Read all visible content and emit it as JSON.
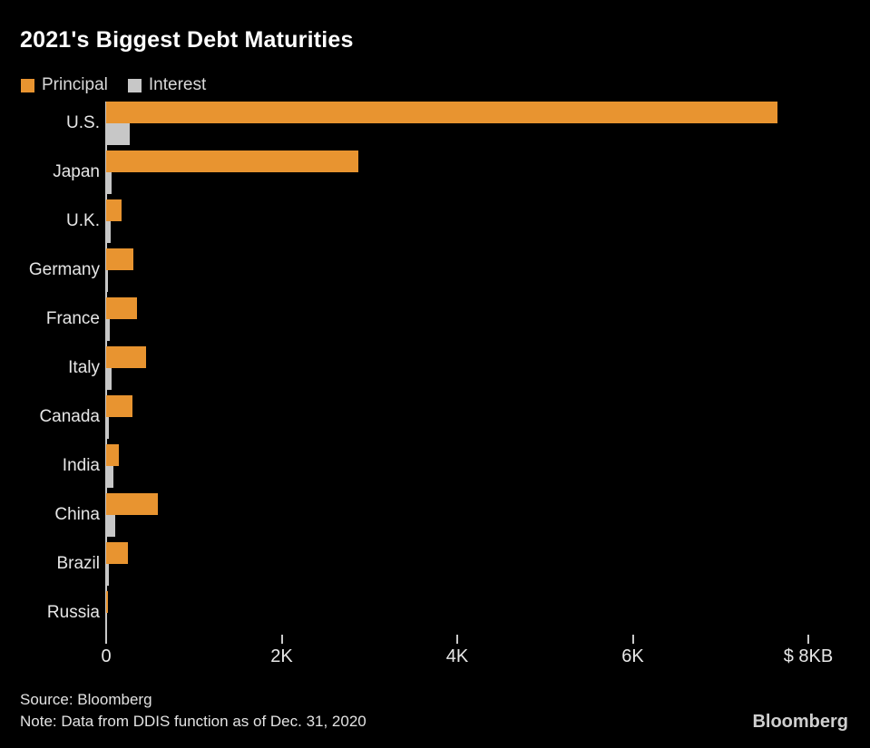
{
  "title": "2021's Biggest Debt Maturities",
  "legend": {
    "items": [
      {
        "label": "Principal",
        "color": "#E89430"
      },
      {
        "label": "Interest",
        "color": "#C7C7C7"
      }
    ]
  },
  "footer": {
    "source": "Source: Bloomberg",
    "note": "Note: Data from DDIS function as of Dec. 31, 2020",
    "brand": "Bloomberg"
  },
  "chart_data": {
    "type": "bar",
    "orientation": "horizontal",
    "title": "2021's Biggest Debt Maturities",
    "unit": "billions of U.S. dollars",
    "categories": [
      "U.S.",
      "Japan",
      "U.K.",
      "Germany",
      "France",
      "Italy",
      "Canada",
      "India",
      "China",
      "Brazil",
      "Russia"
    ],
    "series": [
      {
        "name": "Principal",
        "color": "#E89430",
        "values": [
          7650,
          2870,
          180,
          310,
          350,
          450,
          300,
          140,
          590,
          250,
          20
        ]
      },
      {
        "name": "Interest",
        "color": "#C7C7C7",
        "values": [
          270,
          60,
          50,
          20,
          45,
          65,
          30,
          80,
          100,
          30,
          8
        ]
      }
    ],
    "x_axis": {
      "min": 0,
      "max": 8000,
      "ticks": [
        0,
        2000,
        4000,
        6000,
        8000
      ],
      "tick_labels": [
        "0",
        "2K",
        "4K",
        "6K",
        "$ 8KB"
      ]
    },
    "legend_position": "top",
    "grid": false
  }
}
